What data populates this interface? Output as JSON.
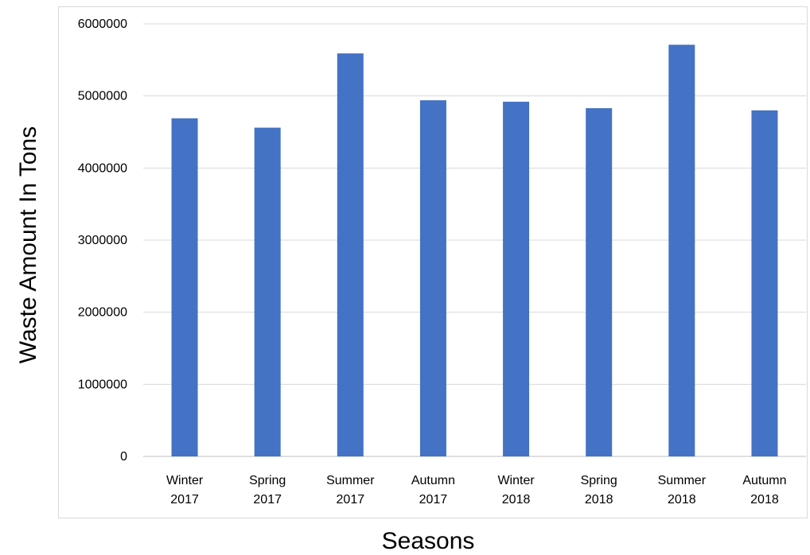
{
  "chart_data": {
    "type": "bar",
    "categories": [
      [
        "Winter",
        "2017"
      ],
      [
        "Spring",
        "2017"
      ],
      [
        "Summer",
        "2017"
      ],
      [
        "Autumn",
        "2017"
      ],
      [
        "Winter",
        "2018"
      ],
      [
        "Spring",
        "2018"
      ],
      [
        "Summer",
        "2018"
      ],
      [
        "Autumn",
        "2018"
      ]
    ],
    "values": [
      4690000,
      4560000,
      5590000,
      4940000,
      4920000,
      4830000,
      5710000,
      4800000
    ],
    "xlabel": "Seasons",
    "ylabel": "Waste Amount In Tons",
    "ylim": [
      0,
      6000000
    ],
    "yticks": [
      "0",
      "1000000",
      "2000000",
      "3000000",
      "4000000",
      "5000000",
      "6000000"
    ],
    "grid": true,
    "legend": "none",
    "colors": {
      "bar": "#4472c4",
      "grid": "#d9d9d9",
      "axis": "#bfbfbf",
      "text": "#000000"
    }
  }
}
